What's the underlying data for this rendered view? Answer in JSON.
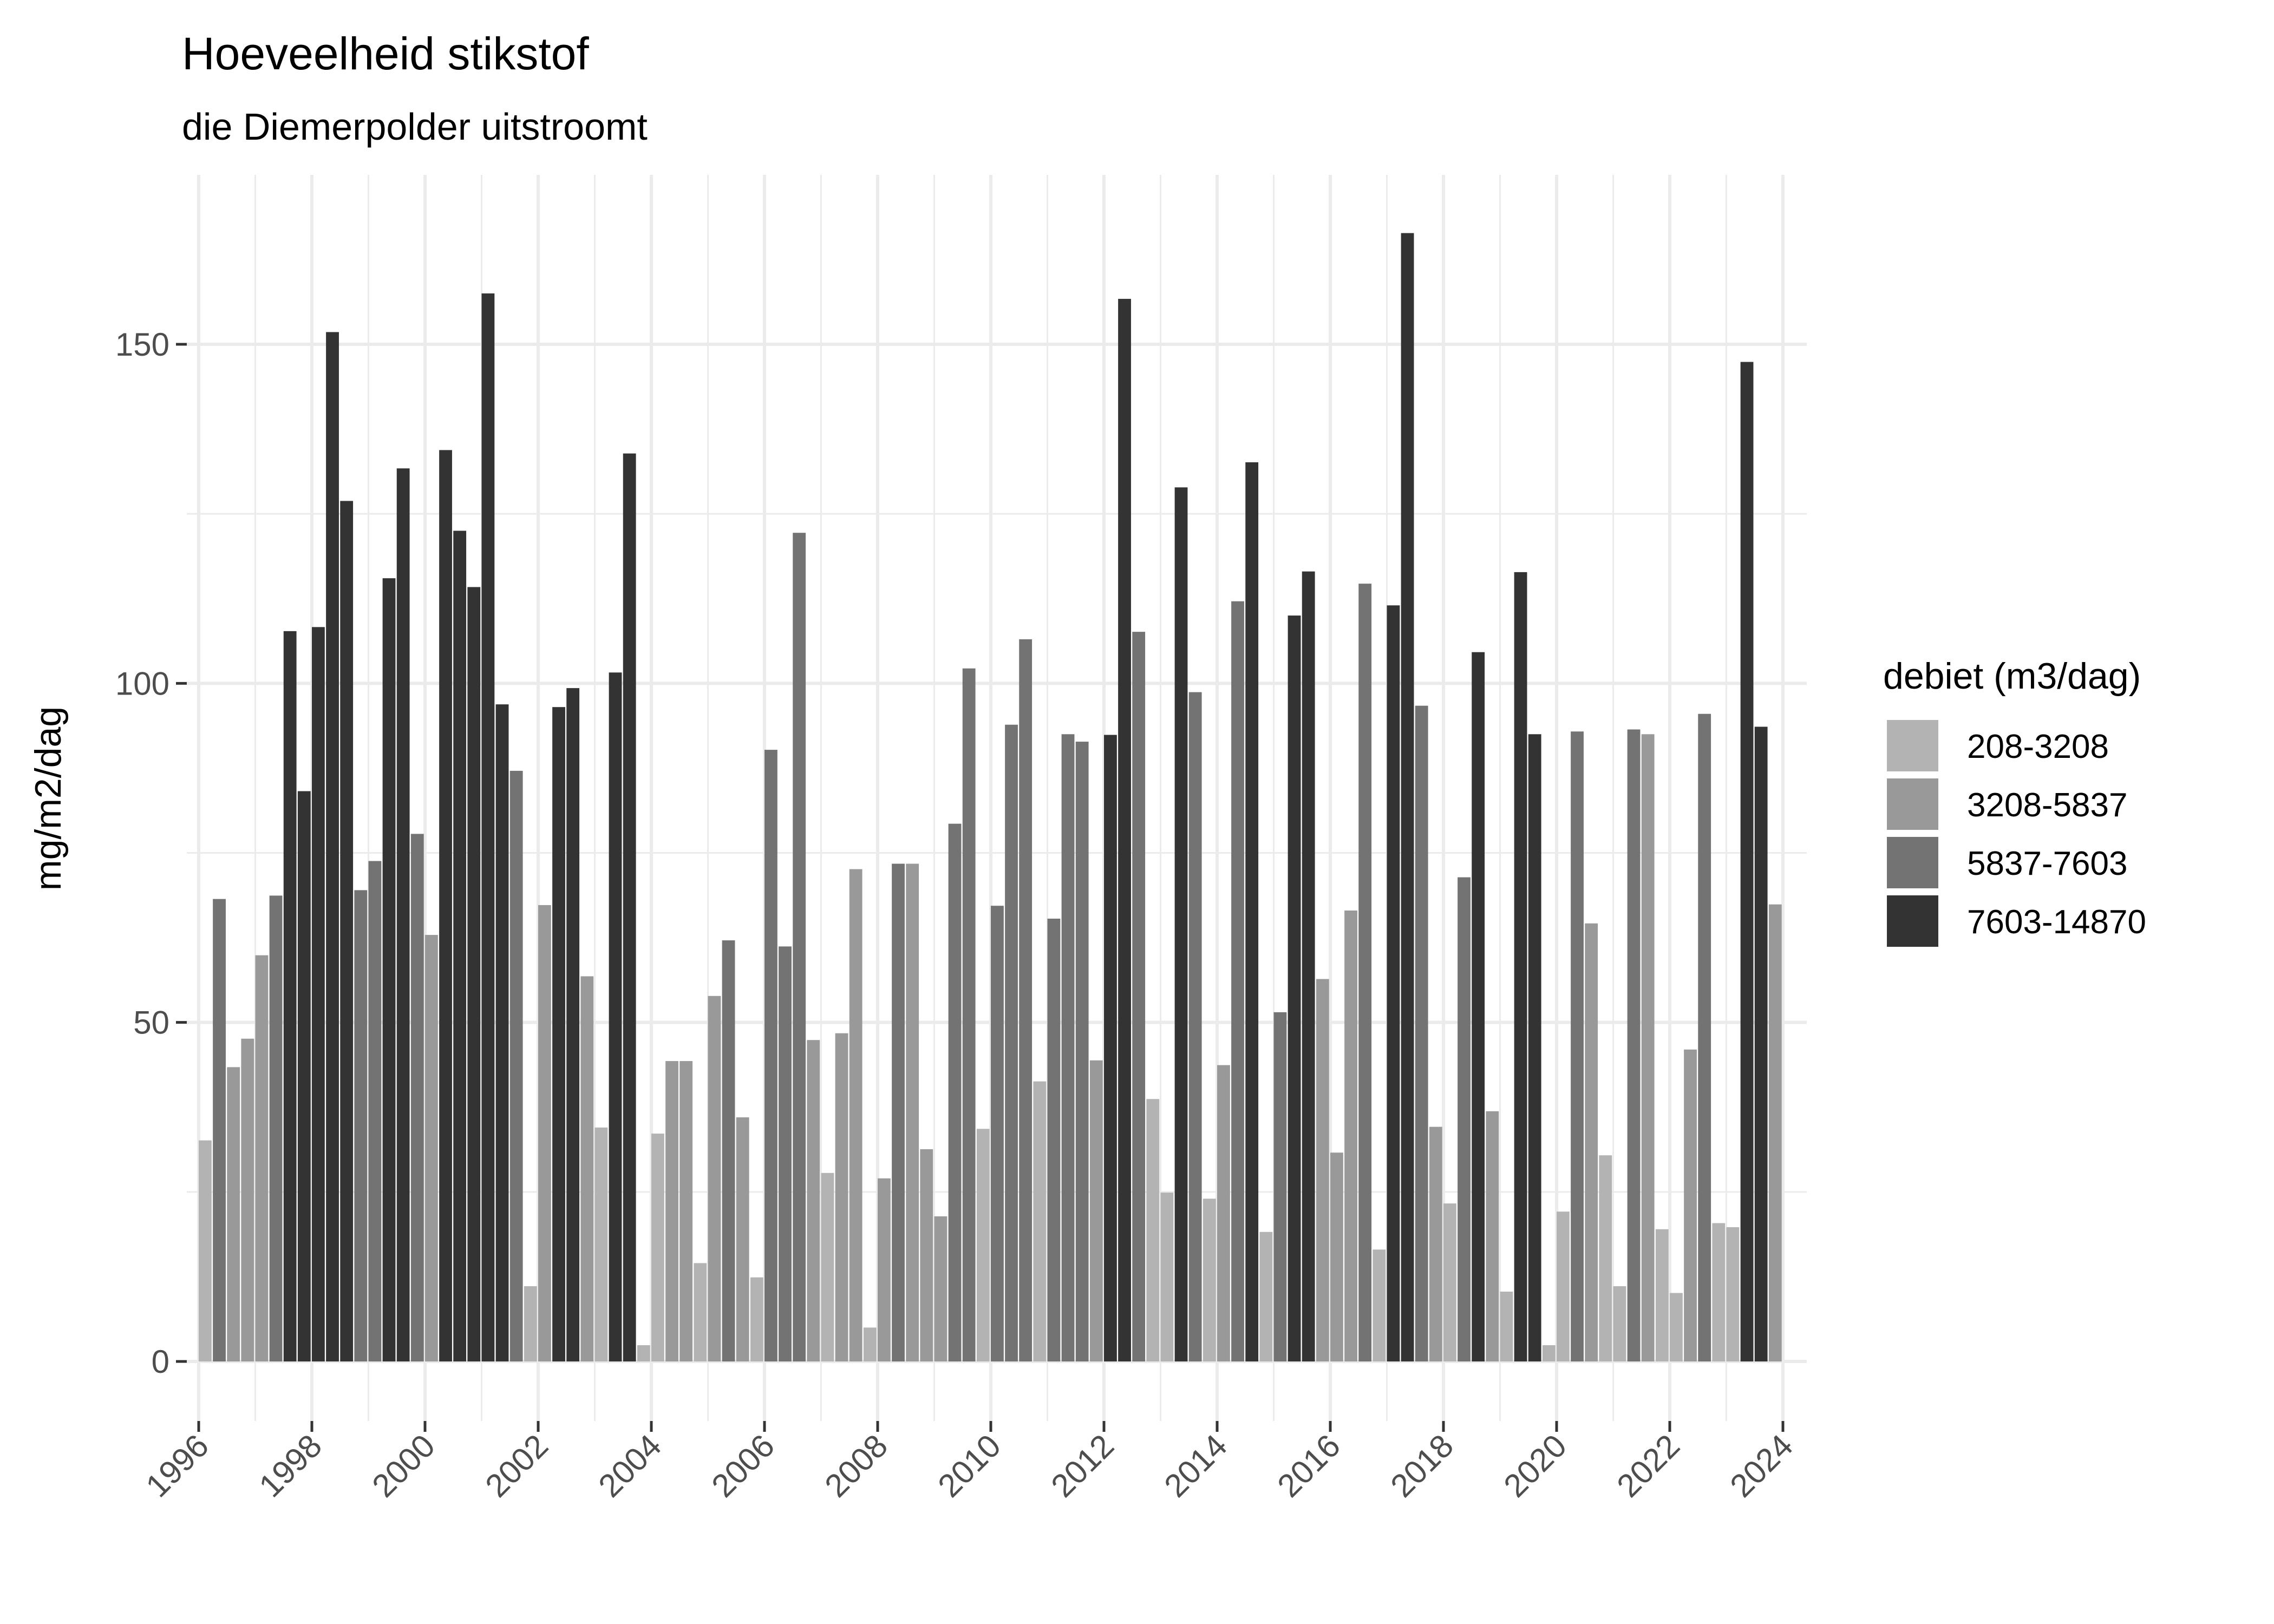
{
  "chart_data": {
    "type": "bar",
    "title": "Hoeveelheid stikstof",
    "subtitle": "die Diemerpolder uitstroomt",
    "xlabel": "",
    "ylabel": "mg/m2/dag",
    "x_unit": "quarter",
    "xlim": [
      1996,
      2024
    ],
    "ylim": [
      0,
      170
    ],
    "x_ticks": [
      "1996",
      "1998",
      "2000",
      "2002",
      "2004",
      "2006",
      "2008",
      "2010",
      "2012",
      "2014",
      "2016",
      "2018",
      "2020",
      "2022",
      "2024"
    ],
    "y_ticks": [
      "0",
      "50",
      "100",
      "150"
    ],
    "grid": true,
    "legend": {
      "title": "debiet (m3/dag)",
      "position": "right"
    },
    "series": [
      {
        "name": "208-3208",
        "color": "#b3b3b3",
        "points": [
          [
            "1996-Q1",
            32.6
          ],
          [
            "2001-Q4",
            11.1
          ],
          [
            "2003-Q1",
            34.5
          ],
          [
            "2003-Q4",
            2.4
          ],
          [
            "2004-Q1",
            33.6
          ],
          [
            "2004-Q4",
            14.5
          ],
          [
            "2005-Q4",
            12.4
          ],
          [
            "2007-Q1",
            27.8
          ],
          [
            "2007-Q4",
            5.0
          ],
          [
            "2009-Q4",
            34.3
          ],
          [
            "2010-Q4",
            41.3
          ],
          [
            "2012-Q4",
            38.7
          ],
          [
            "2013-Q1",
            24.9
          ],
          [
            "2013-Q4",
            24.0
          ],
          [
            "2014-Q4",
            19.1
          ],
          [
            "2016-Q4",
            16.5
          ],
          [
            "2018-Q1",
            23.3
          ],
          [
            "2019-Q1",
            10.3
          ],
          [
            "2019-Q4",
            2.4
          ],
          [
            "2020-Q1",
            22.1
          ],
          [
            "2020-Q4",
            30.4
          ],
          [
            "2021-Q1",
            11.1
          ],
          [
            "2021-Q4",
            19.5
          ],
          [
            "2022-Q1",
            10.1
          ],
          [
            "2022-Q4",
            20.4
          ],
          [
            "2023-Q1",
            19.8
          ]
        ]
      },
      {
        "name": "3208-5837",
        "color": "#999999",
        "points": [
          [
            "1996-Q3",
            43.4
          ],
          [
            "1996-Q4",
            47.6
          ],
          [
            "1997-Q1",
            59.9
          ],
          [
            "2000-Q1",
            62.9
          ],
          [
            "2002-Q1",
            67.3
          ],
          [
            "2002-Q4",
            56.8
          ],
          [
            "2004-Q2",
            44.3
          ],
          [
            "2004-Q3",
            44.3
          ],
          [
            "2005-Q1",
            53.9
          ],
          [
            "2005-Q3",
            36.0
          ],
          [
            "2006-Q4",
            47.4
          ],
          [
            "2007-Q2",
            48.4
          ],
          [
            "2007-Q3",
            72.6
          ],
          [
            "2008-Q1",
            27.0
          ],
          [
            "2008-Q3",
            73.4
          ],
          [
            "2008-Q4",
            31.3
          ],
          [
            "2009-Q1",
            21.4
          ],
          [
            "2011-Q4",
            44.4
          ],
          [
            "2014-Q1",
            43.7
          ],
          [
            "2015-Q4",
            56.4
          ],
          [
            "2016-Q1",
            30.8
          ],
          [
            "2016-Q2",
            66.5
          ],
          [
            "2017-Q4",
            34.6
          ],
          [
            "2018-Q4",
            36.9
          ],
          [
            "2020-Q3",
            64.6
          ],
          [
            "2021-Q3",
            92.5
          ],
          [
            "2022-Q2",
            46.0
          ],
          [
            "2023-Q4",
            67.4
          ]
        ]
      },
      {
        "name": "5837-7603",
        "color": "#737373",
        "points": [
          [
            "1996-Q2",
            68.2
          ],
          [
            "1997-Q2",
            68.7
          ],
          [
            "1998-Q4",
            69.5
          ],
          [
            "1999-Q1",
            73.8
          ],
          [
            "1999-Q4",
            77.8
          ],
          [
            "2001-Q3",
            87.1
          ],
          [
            "2005-Q2",
            62.1
          ],
          [
            "2006-Q1",
            90.2
          ],
          [
            "2006-Q2",
            61.2
          ],
          [
            "2006-Q3",
            122.2
          ],
          [
            "2008-Q2",
            73.4
          ],
          [
            "2009-Q2",
            79.3
          ],
          [
            "2009-Q3",
            102.2
          ],
          [
            "2010-Q1",
            67.2
          ],
          [
            "2010-Q2",
            93.9
          ],
          [
            "2010-Q3",
            106.5
          ],
          [
            "2011-Q1",
            65.3
          ],
          [
            "2011-Q2",
            92.5
          ],
          [
            "2011-Q3",
            91.4
          ],
          [
            "2012-Q3",
            107.6
          ],
          [
            "2013-Q3",
            98.7
          ],
          [
            "2014-Q2",
            112.1
          ],
          [
            "2015-Q1",
            51.5
          ],
          [
            "2016-Q3",
            114.7
          ],
          [
            "2017-Q3",
            96.7
          ],
          [
            "2018-Q2",
            71.4
          ],
          [
            "2020-Q2",
            92.9
          ],
          [
            "2021-Q2",
            93.2
          ],
          [
            "2022-Q3",
            95.5
          ]
        ]
      },
      {
        "name": "7603-14870",
        "color": "#333333",
        "points": [
          [
            "1997-Q3",
            107.7
          ],
          [
            "1997-Q4",
            84.1
          ],
          [
            "1998-Q1",
            108.3
          ],
          [
            "1998-Q2",
            151.8
          ],
          [
            "1998-Q3",
            126.9
          ],
          [
            "1999-Q2",
            115.5
          ],
          [
            "1999-Q3",
            131.7
          ],
          [
            "2000-Q2",
            134.4
          ],
          [
            "2000-Q3",
            122.5
          ],
          [
            "2000-Q4",
            114.2
          ],
          [
            "2001-Q1",
            157.5
          ],
          [
            "2001-Q2",
            96.9
          ],
          [
            "2002-Q2",
            96.5
          ],
          [
            "2002-Q3",
            99.3
          ],
          [
            "2003-Q2",
            101.6
          ],
          [
            "2003-Q3",
            133.9
          ],
          [
            "2012-Q1",
            92.4
          ],
          [
            "2012-Q2",
            156.7
          ],
          [
            "2013-Q2",
            128.9
          ],
          [
            "2014-Q3",
            132.6
          ],
          [
            "2015-Q2",
            110.0
          ],
          [
            "2015-Q3",
            116.5
          ],
          [
            "2017-Q1",
            111.5
          ],
          [
            "2017-Q2",
            166.4
          ],
          [
            "2018-Q3",
            104.6
          ],
          [
            "2019-Q2",
            116.4
          ],
          [
            "2019-Q3",
            92.5
          ],
          [
            "2023-Q2",
            147.4
          ],
          [
            "2023-Q3",
            93.6
          ]
        ]
      }
    ]
  }
}
